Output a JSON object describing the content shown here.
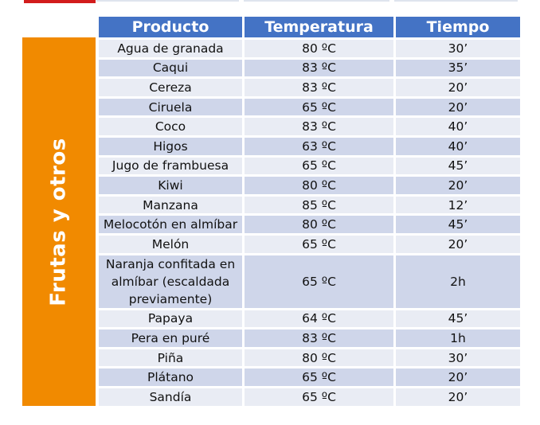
{
  "category_label": "Frutas y otros",
  "table": {
    "headers": [
      "Producto",
      "Temperatura",
      "Tiempo"
    ],
    "rows": [
      [
        "Agua de granada",
        "80 ºC",
        "30’"
      ],
      [
        "Caqui",
        "83 ºC",
        "35’"
      ],
      [
        "Cereza",
        "83 ºC",
        "20’"
      ],
      [
        "Ciruela",
        "65 ºC",
        "20’"
      ],
      [
        "Coco",
        "83 ºC",
        "40’"
      ],
      [
        "Higos",
        "63 ºC",
        "40’"
      ],
      [
        "Jugo de frambuesa",
        "65 ºC",
        "45’"
      ],
      [
        "Kiwi",
        "80 ºC",
        "20’"
      ],
      [
        "Manzana",
        "85 ºC",
        "12’"
      ],
      [
        "Melocotón en almíbar",
        "80 ºC",
        "45’"
      ],
      [
        "Melón",
        "65 ºC",
        "20’"
      ],
      [
        "Naranja confitada en almíbar (escaldada previamente)",
        "65 ºC",
        "2h"
      ],
      [
        "Papaya",
        "64 ºC",
        "45’"
      ],
      [
        "Pera en puré",
        "83 ºC",
        "1h"
      ],
      [
        "Piña",
        "80 ºC",
        "30’"
      ],
      [
        "Plátano",
        "65 ºC",
        "20’"
      ],
      [
        "Sandía",
        "65 ºC",
        "20’"
      ]
    ]
  },
  "colors": {
    "header": "#4473c5",
    "row_light": "#e9ecf4",
    "row_dark": "#cfd6ea",
    "side_band": "#f18a00",
    "top_accent": "#d21c1c"
  }
}
